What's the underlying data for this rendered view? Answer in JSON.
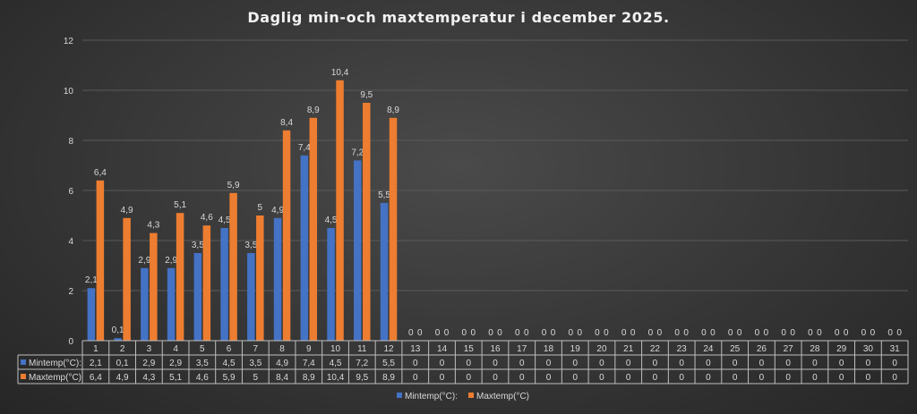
{
  "chart_data": {
    "type": "bar",
    "title": "Daglig min-och maxtemperatur i december 2025.",
    "categories": [
      "1",
      "2",
      "3",
      "4",
      "5",
      "6",
      "7",
      "8",
      "9",
      "10",
      "11",
      "12",
      "13",
      "14",
      "15",
      "16",
      "17",
      "18",
      "19",
      "20",
      "21",
      "22",
      "23",
      "24",
      "25",
      "26",
      "27",
      "28",
      "29",
      "30",
      "31"
    ],
    "series": [
      {
        "name": "Mintemp(°C):",
        "color": "#4472c4",
        "values": [
          2.1,
          0.1,
          2.9,
          2.9,
          3.5,
          4.5,
          3.5,
          4.9,
          7.4,
          4.5,
          7.2,
          5.5,
          0,
          0,
          0,
          0,
          0,
          0,
          0,
          0,
          0,
          0,
          0,
          0,
          0,
          0,
          0,
          0,
          0,
          0,
          0
        ],
        "labels": [
          "2,1",
          "0,1",
          "2,9",
          "2,9",
          "3,5",
          "4,5",
          "3,5",
          "4,9",
          "7,4",
          "4,5",
          "7,2",
          "5,5",
          "0",
          "0",
          "0",
          "0",
          "0",
          "0",
          "0",
          "0",
          "0",
          "0",
          "0",
          "0",
          "0",
          "0",
          "0",
          "0",
          "0",
          "0",
          "0"
        ]
      },
      {
        "name": "Maxtemp(°C)",
        "color": "#ed7d31",
        "values": [
          6.4,
          4.9,
          4.3,
          5.1,
          4.6,
          5.9,
          5,
          8.4,
          8.9,
          10.4,
          9.5,
          8.9,
          0,
          0,
          0,
          0,
          0,
          0,
          0,
          0,
          0,
          0,
          0,
          0,
          0,
          0,
          0,
          0,
          0,
          0,
          0
        ],
        "labels": [
          "6,4",
          "4,9",
          "4,3",
          "5,1",
          "4,6",
          "5,9",
          "5",
          "8,4",
          "8,9",
          "10,4",
          "9,5",
          "8,9",
          "0",
          "0",
          "0",
          "0",
          "0",
          "0",
          "0",
          "0",
          "0",
          "0",
          "0",
          "0",
          "0",
          "0",
          "0",
          "0",
          "0",
          "0",
          "0"
        ]
      }
    ],
    "ylim": [
      0,
      12
    ],
    "yticks": [
      "0",
      "2",
      "4",
      "6",
      "8",
      "10",
      "12"
    ],
    "grid": true,
    "data_table": true,
    "legend_position": "bottom"
  }
}
